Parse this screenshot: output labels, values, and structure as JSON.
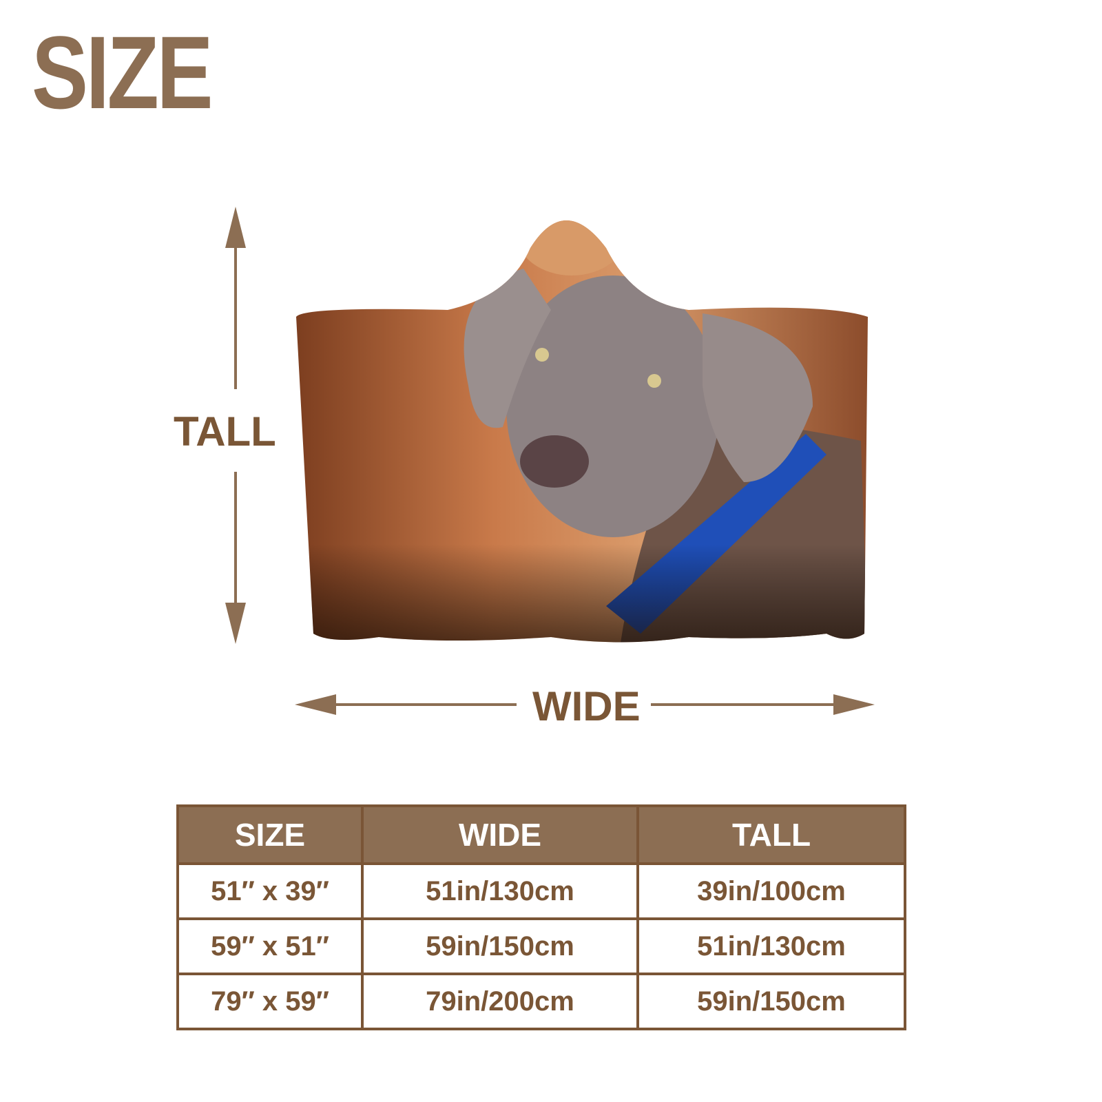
{
  "title": "SIZE",
  "labels": {
    "tall": "TALL",
    "wide": "WIDE"
  },
  "colors": {
    "brand_brown": "#8c6e53",
    "text_brown": "#7a5636",
    "collar_blue": "#1f4fb8"
  },
  "product_image": "hooded-blanket-weimaraner-dog",
  "table": {
    "headers": [
      "SIZE",
      "WIDE",
      "TALL"
    ],
    "rows": [
      [
        "51″ x 39″",
        "51in/130cm",
        "39in/100cm"
      ],
      [
        "59″ x 51″",
        "59in/150cm",
        "51in/130cm"
      ],
      [
        "79″ x 59″",
        "79in/200cm",
        "59in/150cm"
      ]
    ]
  }
}
